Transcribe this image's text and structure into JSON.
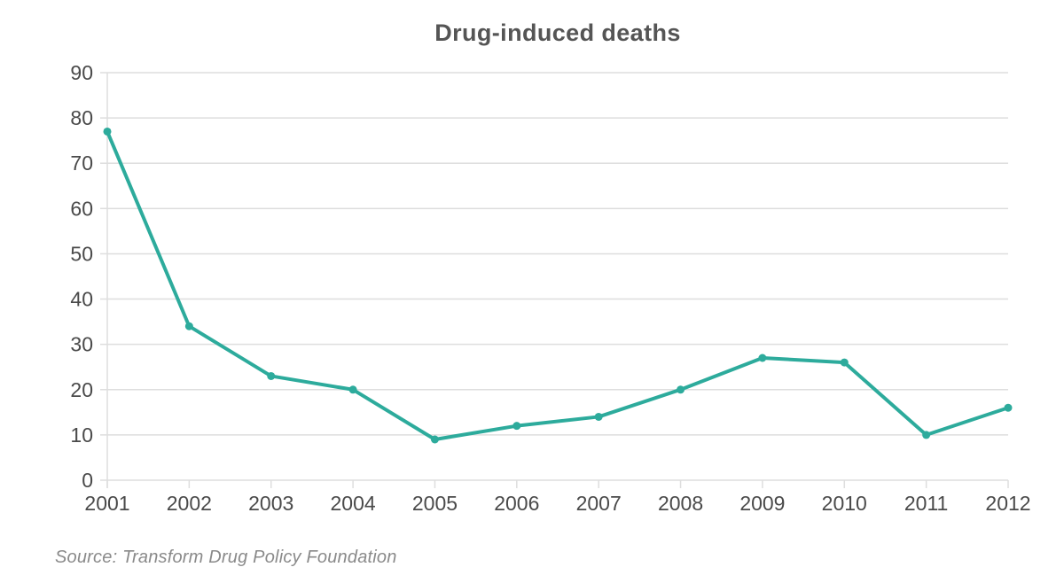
{
  "chart_data": {
    "type": "line",
    "title": "Drug-induced deaths",
    "categories": [
      "2001",
      "2002",
      "2003",
      "2004",
      "2005",
      "2006",
      "2007",
      "2008",
      "2009",
      "2010",
      "2011",
      "2012"
    ],
    "values": [
      77,
      34,
      23,
      20,
      9,
      12,
      14,
      20,
      27,
      26,
      10,
      16
    ],
    "xlabel": "",
    "ylabel": "",
    "ylim": [
      0,
      90
    ],
    "ytick_step": 10,
    "ytick_labels": [
      "0",
      "10",
      "20",
      "30",
      "40",
      "50",
      "60",
      "70",
      "80",
      "90"
    ],
    "grid": "horizontal",
    "legend": "none",
    "line_color": "#2dab9c",
    "marker": "circle"
  },
  "colors": {
    "title": "#555555",
    "axis_labels": "#4a4a4a",
    "grid": "#dedede",
    "source": "#8a8a8a"
  },
  "source": {
    "text": "Source: Transform Drug Policy Foundation"
  }
}
